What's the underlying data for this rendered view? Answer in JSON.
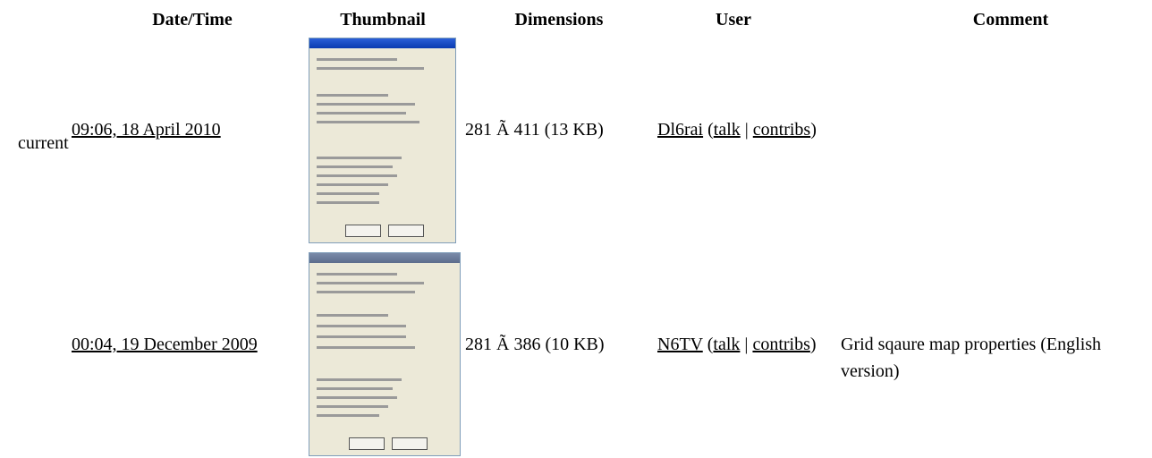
{
  "header": {
    "date_time": "Date/Time",
    "thumbnail": "Thumbnail",
    "dimensions": "Dimensions",
    "user": "User",
    "comment": "Comment"
  },
  "rows": [
    {
      "status": "current",
      "date": "09:06, 18 April 2010",
      "dimensions": "281 Ã 411 (13 KB)",
      "user": {
        "name": "Dl6rai",
        "open": "(",
        "talk": "talk",
        "sep": "|",
        "contribs": "contribs",
        "close": ")"
      }
    },
    {
      "date": "00:04, 19 December 2009",
      "dimensions": "281 Ã 386 (10 KB)",
      "user": {
        "name": "N6TV",
        "open": "(",
        "talk": "talk",
        "sep": "|",
        "contribs": "contribs",
        "close": ")"
      },
      "comment": "Grid sqaure map properties (English version)"
    }
  ]
}
